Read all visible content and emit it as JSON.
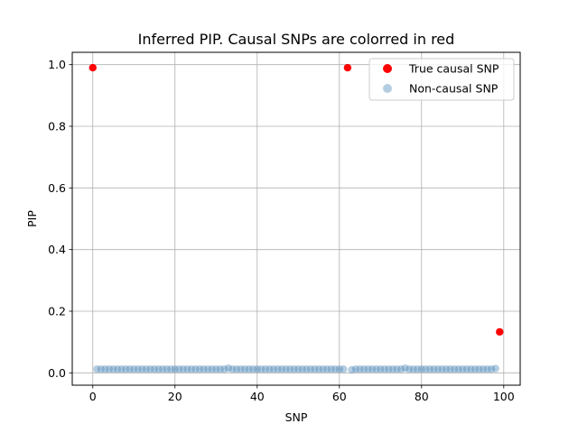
{
  "chart_data": {
    "type": "scatter",
    "title": "Inferred PIP. Causal SNPs are colorred in red",
    "xlabel": "SNP",
    "ylabel": "PIP",
    "xlim": [
      -5,
      104
    ],
    "ylim": [
      -0.04,
      1.04
    ],
    "xticks": [
      0,
      20,
      40,
      60,
      80,
      100
    ],
    "xtick_labels": [
      "0",
      "20",
      "40",
      "60",
      "80",
      "100"
    ],
    "yticks": [
      0.0,
      0.2,
      0.4,
      0.6,
      0.8,
      1.0
    ],
    "ytick_labels": [
      "0.0",
      "0.2",
      "0.4",
      "0.6",
      "0.8",
      "1.0"
    ],
    "grid": true,
    "legend_position": "top-right",
    "series": [
      {
        "name": "True causal SNP",
        "color": "#ff0000",
        "alpha": 1.0,
        "x": [
          0,
          62,
          99
        ],
        "y": [
          0.99,
          0.99,
          0.133
        ]
      },
      {
        "name": "Non-causal SNP",
        "color": "#4682b4",
        "alpha": 0.4,
        "x": [
          1,
          2,
          3,
          4,
          5,
          6,
          7,
          8,
          9,
          10,
          11,
          12,
          13,
          14,
          15,
          16,
          17,
          18,
          19,
          20,
          21,
          22,
          23,
          24,
          25,
          26,
          27,
          28,
          29,
          30,
          31,
          32,
          33,
          34,
          35,
          36,
          37,
          38,
          39,
          40,
          41,
          42,
          43,
          44,
          45,
          46,
          47,
          48,
          49,
          50,
          51,
          52,
          53,
          54,
          55,
          56,
          57,
          58,
          59,
          60,
          61,
          63,
          64,
          65,
          66,
          67,
          68,
          69,
          70,
          71,
          72,
          73,
          74,
          75,
          76,
          77,
          78,
          79,
          80,
          81,
          82,
          83,
          84,
          85,
          86,
          87,
          88,
          89,
          90,
          91,
          92,
          93,
          94,
          95,
          96,
          97,
          98
        ],
        "y": [
          0.012,
          0.012,
          0.012,
          0.012,
          0.012,
          0.012,
          0.012,
          0.012,
          0.012,
          0.012,
          0.012,
          0.012,
          0.012,
          0.012,
          0.012,
          0.012,
          0.012,
          0.012,
          0.012,
          0.012,
          0.012,
          0.012,
          0.012,
          0.012,
          0.012,
          0.012,
          0.012,
          0.012,
          0.012,
          0.012,
          0.012,
          0.012,
          0.015,
          0.012,
          0.012,
          0.012,
          0.012,
          0.012,
          0.012,
          0.012,
          0.012,
          0.012,
          0.012,
          0.012,
          0.012,
          0.012,
          0.012,
          0.012,
          0.012,
          0.012,
          0.012,
          0.012,
          0.012,
          0.012,
          0.012,
          0.012,
          0.012,
          0.012,
          0.012,
          0.012,
          0.012,
          0.01,
          0.012,
          0.012,
          0.012,
          0.012,
          0.012,
          0.012,
          0.012,
          0.012,
          0.012,
          0.012,
          0.012,
          0.012,
          0.015,
          0.012,
          0.012,
          0.012,
          0.012,
          0.012,
          0.012,
          0.012,
          0.012,
          0.012,
          0.012,
          0.012,
          0.012,
          0.012,
          0.012,
          0.012,
          0.012,
          0.012,
          0.012,
          0.012,
          0.012,
          0.012,
          0.014
        ]
      }
    ]
  }
}
